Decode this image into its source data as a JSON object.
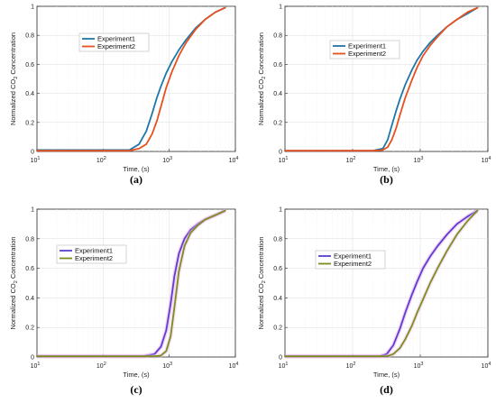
{
  "chart_data": [
    {
      "type": "line",
      "panel_label": "(a)",
      "xlabel": "Time, (s)",
      "ylabel": "Normalized CO",
      "ylabel_sub": "2",
      "ylabel_rest": " Concentration",
      "xscale": "log",
      "xlim": [
        10,
        10000
      ],
      "ylim": [
        0,
        1
      ],
      "x_ticks": [
        {
          "base": "10",
          "exp": "1"
        },
        {
          "base": "10",
          "exp": "2"
        },
        {
          "base": "10",
          "exp": "3"
        },
        {
          "base": "10",
          "exp": "4"
        }
      ],
      "y_ticks": [
        "0",
        "0.2",
        "0.4",
        "0.6",
        "0.8",
        "1"
      ],
      "grid": true,
      "legend": "top-center",
      "series": [
        {
          "name": "Experiment1",
          "color": "#1f77a8",
          "x": [
            10,
            100,
            250,
            350,
            450,
            550,
            650,
            750,
            900,
            1100,
            1400,
            1800,
            2500,
            3500,
            5000,
            7000
          ],
          "y": [
            0.01,
            0.01,
            0.01,
            0.05,
            0.14,
            0.26,
            0.37,
            0.45,
            0.54,
            0.62,
            0.7,
            0.77,
            0.85,
            0.91,
            0.96,
            0.99
          ]
        },
        {
          "name": "Experiment2",
          "color": "#e8501e",
          "x": [
            10,
            100,
            250,
            350,
            450,
            550,
            650,
            750,
            900,
            1100,
            1400,
            1800,
            2500,
            3500,
            5000,
            7000
          ],
          "y": [
            0.005,
            0.005,
            0.005,
            0.02,
            0.05,
            0.12,
            0.21,
            0.31,
            0.44,
            0.55,
            0.66,
            0.75,
            0.84,
            0.91,
            0.96,
            0.99
          ]
        }
      ]
    },
    {
      "type": "line",
      "panel_label": "(b)",
      "xlabel": "Time, (s)",
      "ylabel": "Normalized CO",
      "ylabel_sub": "2",
      "ylabel_rest": " Concentration",
      "xscale": "log",
      "xlim": [
        10,
        10000
      ],
      "ylim": [
        0,
        1
      ],
      "x_ticks": [
        {
          "base": "10",
          "exp": "1"
        },
        {
          "base": "10",
          "exp": "2"
        },
        {
          "base": "10",
          "exp": "3"
        },
        {
          "base": "10",
          "exp": "4"
        }
      ],
      "y_ticks": [
        "0",
        "0.2",
        "0.4",
        "0.6",
        "0.8",
        "1"
      ],
      "grid": true,
      "legend": "top-center",
      "series": [
        {
          "name": "Experiment1",
          "color": "#1f77a8",
          "x": [
            10,
            100,
            200,
            280,
            330,
            380,
            440,
            500,
            600,
            750,
            900,
            1100,
            1400,
            1800,
            2500,
            3500,
            5000,
            7000
          ],
          "y": [
            0.005,
            0.005,
            0.005,
            0.02,
            0.08,
            0.18,
            0.28,
            0.36,
            0.46,
            0.56,
            0.63,
            0.69,
            0.75,
            0.8,
            0.86,
            0.91,
            0.95,
            0.99
          ]
        },
        {
          "name": "Experiment2",
          "color": "#e8501e",
          "x": [
            10,
            100,
            200,
            280,
            330,
            380,
            440,
            500,
            600,
            750,
            900,
            1100,
            1400,
            1800,
            2500,
            3500,
            5000,
            7000
          ],
          "y": [
            0.005,
            0.005,
            0.005,
            0.01,
            0.03,
            0.08,
            0.16,
            0.25,
            0.37,
            0.49,
            0.58,
            0.66,
            0.73,
            0.79,
            0.86,
            0.91,
            0.96,
            0.99
          ]
        }
      ]
    },
    {
      "type": "line",
      "panel_label": "(c)",
      "xlabel": "Time, (s)",
      "ylabel": "Normalized CO",
      "ylabel_sub": "2",
      "ylabel_rest": " Concentration",
      "xscale": "log",
      "xlim": [
        10,
        10000
      ],
      "ylim": [
        0,
        1
      ],
      "x_ticks": [
        {
          "base": "10",
          "exp": "1"
        },
        {
          "base": "10",
          "exp": "2"
        },
        {
          "base": "10",
          "exp": "3"
        },
        {
          "base": "10",
          "exp": "4"
        }
      ],
      "y_ticks": [
        "0",
        "0.2",
        "0.4",
        "0.6",
        "0.8",
        "1"
      ],
      "grid": true,
      "legend": "top-left",
      "series": [
        {
          "name": "Experiment1",
          "color": "#5b3fd1",
          "x": [
            10,
            100,
            400,
            600,
            750,
            900,
            1050,
            1200,
            1400,
            1700,
            2100,
            2700,
            3500,
            5000,
            7000
          ],
          "y": [
            0.005,
            0.005,
            0.005,
            0.02,
            0.07,
            0.18,
            0.36,
            0.55,
            0.7,
            0.8,
            0.86,
            0.9,
            0.93,
            0.96,
            0.99
          ]
        },
        {
          "name": "Experiment2",
          "color": "#7a8f1e",
          "x": [
            10,
            100,
            400,
            600,
            750,
            900,
            1050,
            1200,
            1400,
            1700,
            2100,
            2700,
            3500,
            5000,
            7000
          ],
          "y": [
            0.005,
            0.005,
            0.005,
            0.005,
            0.01,
            0.04,
            0.14,
            0.34,
            0.58,
            0.75,
            0.84,
            0.89,
            0.93,
            0.96,
            0.99
          ]
        }
      ]
    },
    {
      "type": "line",
      "panel_label": "(d)",
      "xlabel": "Time, (s)",
      "ylabel": "Normalized CO",
      "ylabel_sub": "2",
      "ylabel_rest": " Concentration",
      "xscale": "log",
      "xlim": [
        10,
        10000
      ],
      "ylim": [
        0,
        1
      ],
      "x_ticks": [
        {
          "base": "10",
          "exp": "1"
        },
        {
          "base": "10",
          "exp": "2"
        },
        {
          "base": "10",
          "exp": "3"
        },
        {
          "base": "10",
          "exp": "4"
        }
      ],
      "y_ticks": [
        "0",
        "0.2",
        "0.4",
        "0.6",
        "0.8",
        "1"
      ],
      "grid": true,
      "legend": "top-left",
      "series": [
        {
          "name": "Experiment1",
          "color": "#5b3fd1",
          "x": [
            10,
            100,
            250,
            320,
            400,
            500,
            600,
            750,
            900,
            1100,
            1400,
            1800,
            2500,
            3500,
            5000,
            7000
          ],
          "y": [
            0.005,
            0.005,
            0.005,
            0.02,
            0.08,
            0.19,
            0.3,
            0.42,
            0.51,
            0.6,
            0.68,
            0.75,
            0.83,
            0.9,
            0.95,
            0.99
          ]
        },
        {
          "name": "Experiment2",
          "color": "#7a8f1e",
          "x": [
            10,
            100,
            250,
            320,
            400,
            500,
            600,
            750,
            900,
            1100,
            1400,
            1800,
            2500,
            3500,
            5000,
            7000
          ],
          "y": [
            0.005,
            0.005,
            0.005,
            0.005,
            0.02,
            0.06,
            0.12,
            0.21,
            0.3,
            0.39,
            0.5,
            0.6,
            0.72,
            0.83,
            0.92,
            0.99
          ]
        }
      ]
    }
  ]
}
